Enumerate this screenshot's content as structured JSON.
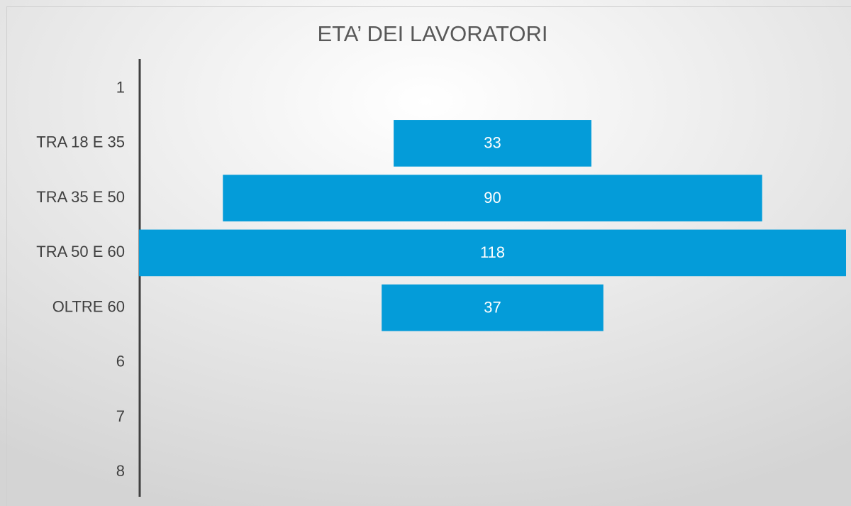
{
  "chart_data": {
    "type": "funnel",
    "title": "ETA’ DEI LAVORATORI",
    "categories": [
      "1",
      "TRA 18 E 35",
      "TRA 35 E 50",
      "TRA 50 E 60",
      "OLTRE 60",
      "6",
      "7",
      "8"
    ],
    "values": [
      null,
      33,
      90,
      118,
      37,
      null,
      null,
      null
    ],
    "color": "#049cd9"
  }
}
